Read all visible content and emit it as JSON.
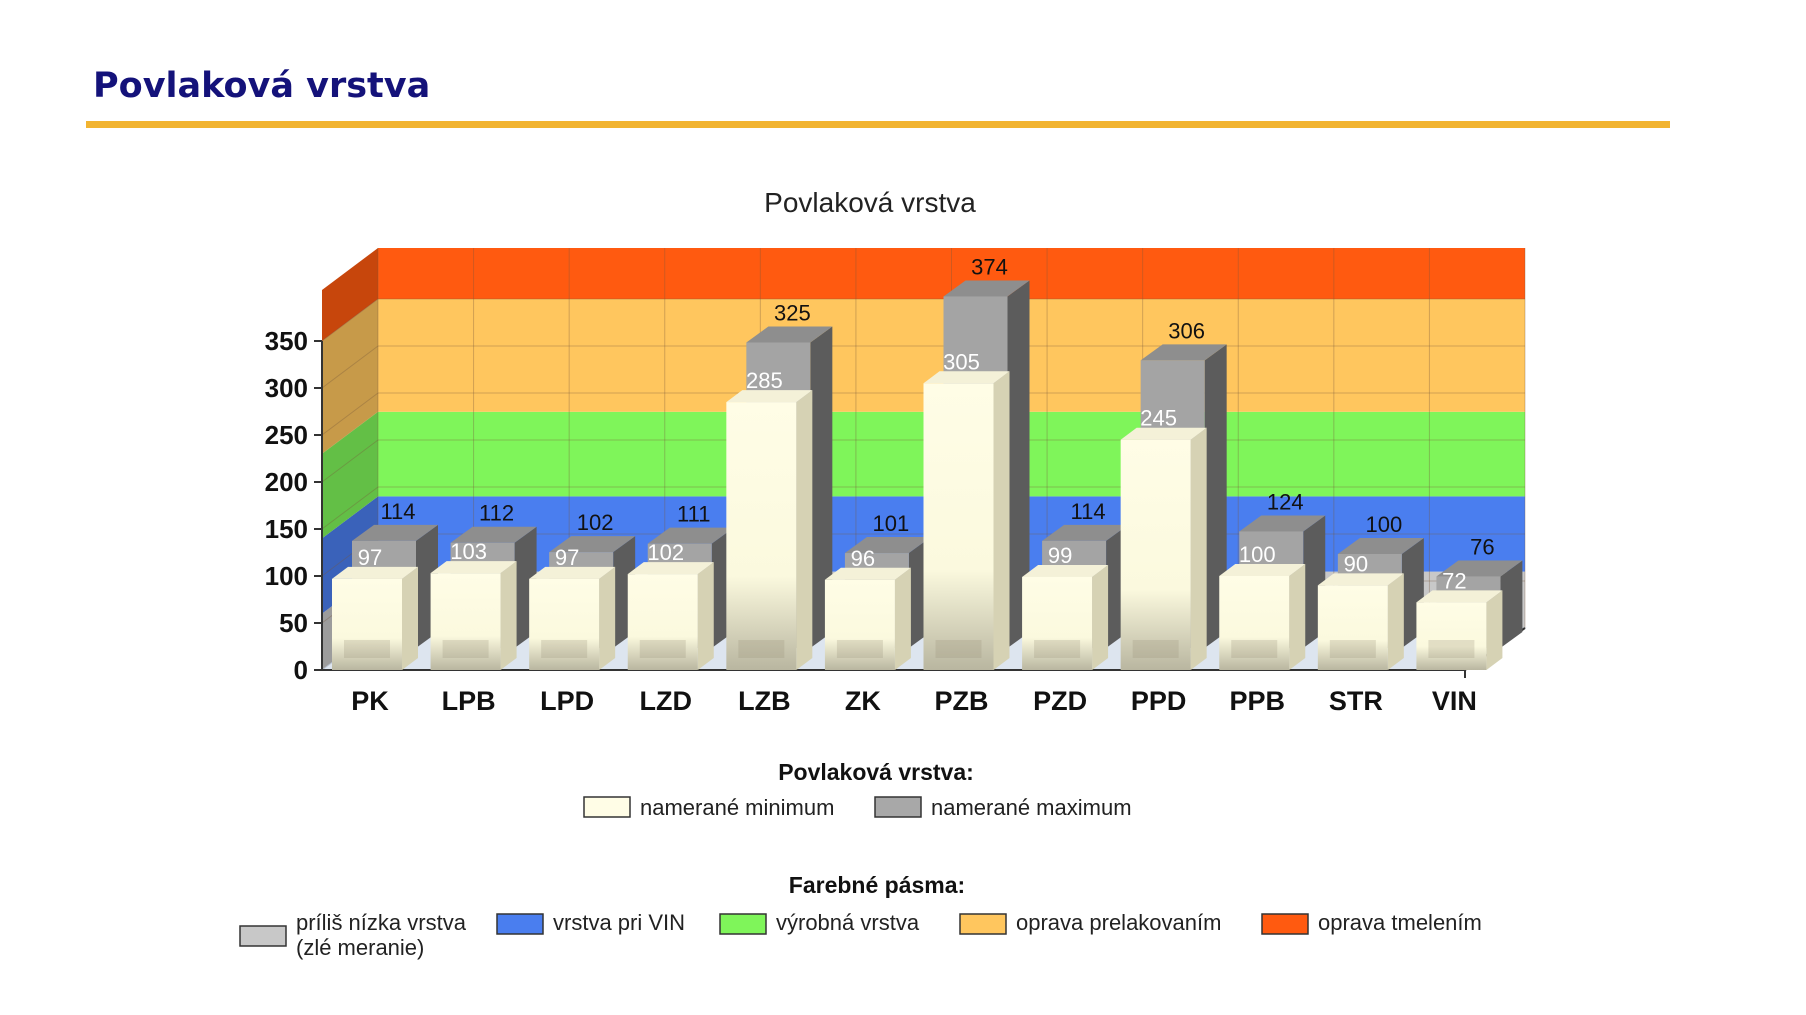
{
  "page": {
    "heading": "Povlaková vrstva"
  },
  "chart_data": {
    "type": "bar",
    "title": "Povlaková vrstva",
    "categories": [
      "PK",
      "LPB",
      "LPD",
      "LZD",
      "LZB",
      "ZK",
      "PZB",
      "PZD",
      "PPD",
      "PPB",
      "STR",
      "VIN"
    ],
    "series": [
      {
        "name": "namerané minimum",
        "values": [
          97,
          103,
          97,
          102,
          285,
          96,
          305,
          99,
          245,
          100,
          90,
          72
        ],
        "color": "#fffde6"
      },
      {
        "name": "namerané maximum",
        "values": [
          114,
          112,
          102,
          111,
          325,
          101,
          374,
          114,
          306,
          124,
          100,
          76
        ],
        "color": "#a8a8a8"
      }
    ],
    "ylim": [
      0,
      350
    ],
    "yticks": [
      0,
      50,
      100,
      150,
      200,
      250,
      300,
      350
    ],
    "grid": true,
    "bands": [
      {
        "name": "príliš nízka vrstva (zlé meranie)",
        "from": 0,
        "to": 60,
        "color": "#c8c8c8"
      },
      {
        "name": "vrstva pri VIN",
        "from": 60,
        "to": 140,
        "color": "#4a7eef"
      },
      {
        "name": "výrobná vrstva",
        "from": 140,
        "to": 230,
        "color": "#7ff55a"
      },
      {
        "name": "oprava prelakovaním",
        "from": 230,
        "to": 350,
        "color": "#ffc65e"
      },
      {
        "name": "oprava tmelením",
        "from": 350,
        "to": 450,
        "color": "#ff5a10"
      }
    ],
    "legend_title": "Povlaková vrstva:",
    "bands_legend_title": "Farebné pásma:",
    "legend_placement": "bottom",
    "band_legend": [
      {
        "lines": [
          "príliš nízka vrstva",
          "(zlé meranie)"
        ],
        "color": "#c8c8c8"
      },
      {
        "lines": [
          "vrstva pri VIN"
        ],
        "color": "#4a7eef"
      },
      {
        "lines": [
          "výrobná vrstva"
        ],
        "color": "#7ff55a"
      },
      {
        "lines": [
          "oprava prelakovaním"
        ],
        "color": "#ffc65e"
      },
      {
        "lines": [
          "oprava tmelením"
        ],
        "color": "#ff5a10"
      }
    ]
  }
}
